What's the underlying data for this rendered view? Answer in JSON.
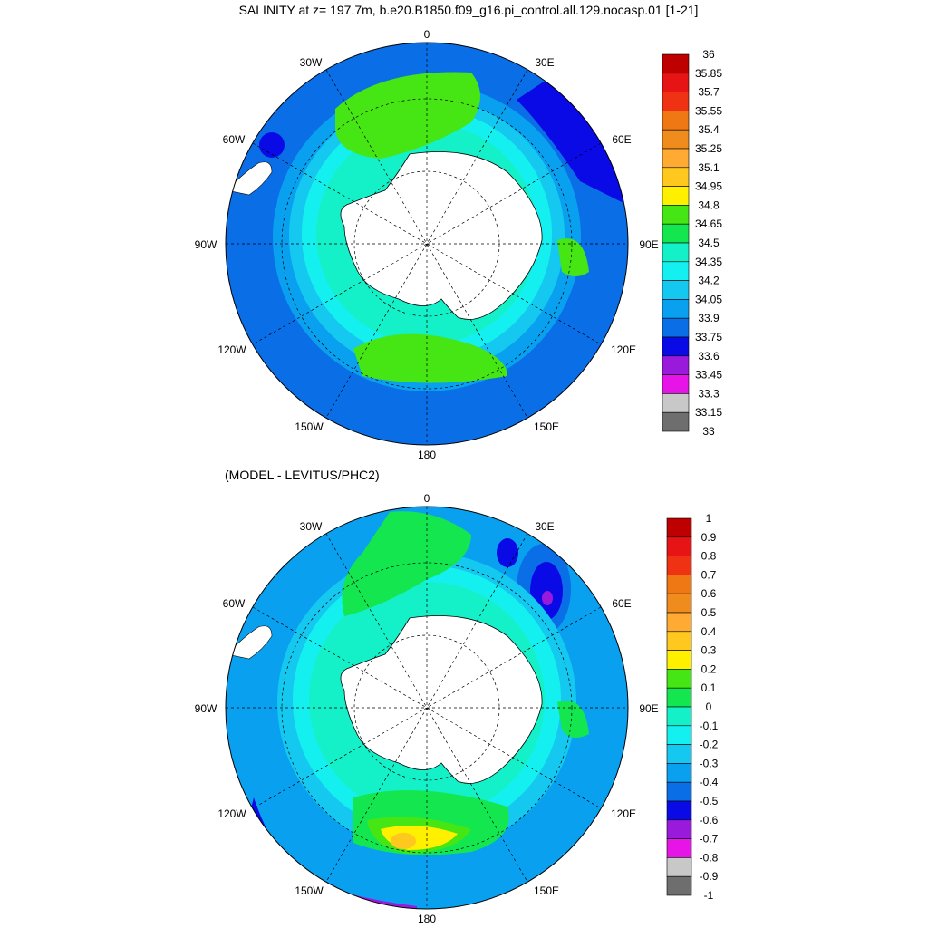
{
  "top_panel": {
    "title": "SALINITY at z= 197.7m, b.e20.B1850.f09_g16.pi_control.all.129.nocasp.01 [1-21]",
    "lon_labels": [
      "0",
      "30E",
      "60E",
      "90E",
      "120E",
      "150E",
      "180",
      "150W",
      "120W",
      "90W",
      "60W",
      "30W"
    ],
    "colorbar": {
      "colors": [
        "#6e6e6e",
        "#c8c8c8",
        "#e614e6",
        "#9a1adc",
        "#0a0ae6",
        "#0a6ee6",
        "#0aa0f0",
        "#14c8f0",
        "#14f0f0",
        "#14f0c8",
        "#14e650",
        "#46e614",
        "#fff000",
        "#ffc81e",
        "#ffaa32",
        "#f08c1e",
        "#f07814",
        "#f03214",
        "#e61414",
        "#be0000"
      ],
      "labels": [
        "33",
        "33.15",
        "33.3",
        "33.45",
        "33.6",
        "33.75",
        "33.9",
        "34.05",
        "34.2",
        "34.35",
        "34.5",
        "34.65",
        "34.8",
        "34.95",
        "35.1",
        "35.25",
        "35.4",
        "35.55",
        "35.7",
        "35.85",
        "36"
      ]
    }
  },
  "bottom_panel": {
    "title": "(MODEL - LEVITUS/PHC2)",
    "lon_labels": [
      "0",
      "30E",
      "60E",
      "90E",
      "120E",
      "150E",
      "180",
      "150W",
      "120W",
      "90W",
      "60W",
      "30W"
    ],
    "colorbar": {
      "colors": [
        "#6e6e6e",
        "#c8c8c8",
        "#e614e6",
        "#9a1adc",
        "#0a0ae6",
        "#0a6ee6",
        "#0aa0f0",
        "#14c8f0",
        "#14f0f0",
        "#14f0c8",
        "#14e650",
        "#46e614",
        "#fff000",
        "#ffc81e",
        "#ffaa32",
        "#f08c1e",
        "#f07814",
        "#f03214",
        "#e61414",
        "#be0000"
      ],
      "labels": [
        "-1",
        "-0.9",
        "-0.8",
        "-0.7",
        "-0.6",
        "-0.5",
        "-0.4",
        "-0.3",
        "-0.2",
        "-0.1",
        "0",
        "0.1",
        "0.2",
        "0.3",
        "0.4",
        "0.5",
        "0.6",
        "0.7",
        "0.8",
        "0.9",
        "1"
      ]
    }
  }
}
